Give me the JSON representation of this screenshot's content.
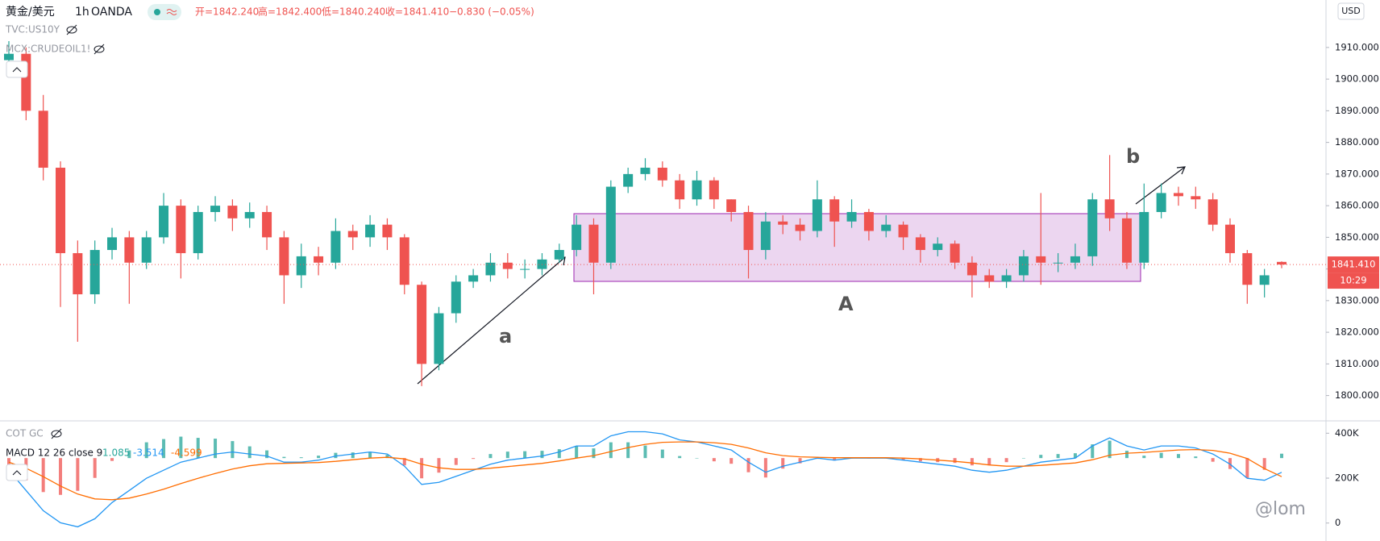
{
  "chart_data": [
    {
      "type": "candlestick",
      "title": "黄金/美元",
      "interval": "1h",
      "source": "OANDA",
      "ohlc_labels": [
        "开=1842.240",
        "高=1842.400",
        "低=1840.240",
        "收=1841.410"
      ],
      "change_label": "−0.830 (−0.05%)",
      "overlays": [
        "TVC:US10Y",
        "MCX:CRUDEOIL1!"
      ],
      "currency": "USD",
      "last_price_label": "1841.410",
      "countdown": "10:29",
      "annotations": [
        "a",
        "A",
        "b"
      ],
      "watermark": "@lom",
      "up_color": "#26a69a",
      "down_color": "#ef5350",
      "open": [
        1906,
        1908,
        1890,
        1872,
        1845,
        1832,
        1846,
        1850,
        1842,
        1850,
        1860,
        1845,
        1858,
        1860,
        1856,
        1858,
        1850,
        1838,
        1844,
        1842,
        1852,
        1850,
        1854,
        1850,
        1835,
        1810,
        1826,
        1836,
        1838,
        1842,
        1840,
        1840,
        1843,
        1846,
        1854,
        1842,
        1866,
        1870,
        1872,
        1868,
        1862,
        1868,
        1862,
        1858,
        1846,
        1855,
        1854,
        1852,
        1862,
        1855,
        1858,
        1852,
        1854,
        1850,
        1846,
        1848,
        1842,
        1838,
        1836,
        1838,
        1844,
        1842,
        1842,
        1844,
        1862,
        1856,
        1842,
        1858,
        1864,
        1863,
        1862,
        1854,
        1845,
        1835,
        1842.24
      ],
      "high": [
        1912,
        1910,
        1895,
        1874,
        1849,
        1849,
        1853,
        1852,
        1852,
        1864,
        1862,
        1860,
        1863,
        1862,
        1861,
        1860,
        1852,
        1848,
        1847,
        1856,
        1854,
        1857,
        1856,
        1851,
        1836,
        1828,
        1838,
        1840,
        1845,
        1845,
        1843,
        1845,
        1848,
        1857,
        1856,
        1868,
        1872,
        1875,
        1874,
        1870,
        1871,
        1869,
        1862,
        1860,
        1858,
        1857,
        1856,
        1868,
        1863,
        1862,
        1859,
        1857,
        1855,
        1851,
        1850,
        1849,
        1844,
        1840,
        1840,
        1846,
        1864,
        1845,
        1848,
        1864,
        1876,
        1858,
        1867,
        1867,
        1866,
        1866,
        1864,
        1856,
        1846,
        1840,
        1842.4
      ],
      "low": [
        1902,
        1887,
        1868,
        1828,
        1817,
        1829,
        1843,
        1829,
        1840,
        1848,
        1837,
        1843,
        1855,
        1852,
        1853,
        1846,
        1829,
        1834,
        1838,
        1840,
        1846,
        1847,
        1846,
        1832,
        1803,
        1808,
        1823,
        1834,
        1836,
        1837,
        1837,
        1838,
        1842,
        1844,
        1832,
        1840,
        1864,
        1868,
        1866,
        1859,
        1860,
        1859,
        1855,
        1837,
        1843,
        1851,
        1849,
        1850,
        1847,
        1853,
        1849,
        1850,
        1846,
        1842,
        1844,
        1840,
        1831,
        1834,
        1834,
        1836,
        1835,
        1839,
        1840,
        1841,
        1852,
        1840,
        1840,
        1856,
        1860,
        1859,
        1852,
        1842,
        1829,
        1831,
        1840.24
      ],
      "close": [
        1908,
        1890,
        1872,
        1845,
        1832,
        1846,
        1850,
        1842,
        1850,
        1860,
        1845,
        1858,
        1860,
        1856,
        1858,
        1850,
        1838,
        1844,
        1842,
        1852,
        1850,
        1854,
        1850,
        1835,
        1810,
        1826,
        1836,
        1838,
        1842,
        1840,
        1840,
        1843,
        1846,
        1854,
        1842,
        1866,
        1870,
        1872,
        1868,
        1862,
        1868,
        1862,
        1858,
        1846,
        1855,
        1854,
        1852,
        1862,
        1855,
        1858,
        1852,
        1854,
        1850,
        1846,
        1848,
        1842,
        1838,
        1836,
        1838,
        1844,
        1842,
        1842,
        1844,
        1862,
        1856,
        1842,
        1858,
        1864,
        1863,
        1862,
        1854,
        1845,
        1835,
        1838,
        1841.41
      ],
      "ylim": [
        1792,
        1925
      ],
      "yticks": [
        {
          "value": 1800,
          "label": "1800.000"
        },
        {
          "value": 1810,
          "label": "1810.000"
        },
        {
          "value": 1820,
          "label": "1820.000"
        },
        {
          "value": 1830,
          "label": "1830.000"
        },
        {
          "value": 1840,
          "label": "1840.000"
        },
        {
          "value": 1850,
          "label": "1850.000"
        },
        {
          "value": 1860,
          "label": "1860.000"
        },
        {
          "value": 1870,
          "label": "1870.000"
        },
        {
          "value": 1880,
          "label": "1880.000"
        },
        {
          "value": 1890,
          "label": "1890.000"
        },
        {
          "value": 1900,
          "label": "1900.000"
        },
        {
          "value": 1910,
          "label": "1910.000"
        }
      ],
      "grid": false
    },
    {
      "type": "macd",
      "indicators": [
        "COT GC",
        "MACD 12 26 close 9"
      ],
      "series": [
        {
          "style": "histogram",
          "color": "#26a69a",
          "negative_color": "#ef5350",
          "values": [
            -2,
            -5.5,
            -8.4,
            -9.1,
            -8.1,
            -4.9,
            -0.7,
            1.9,
            3.9,
            4.7,
            5.3,
            5,
            4.8,
            4.2,
            2.9,
            1.9,
            0.3,
            0.2,
            0.6,
            1.3,
            1.4,
            1.5,
            0.8,
            -1.8,
            -5,
            -3.6,
            -1.7,
            -0.2,
            1,
            1.6,
            1.7,
            1.8,
            2.2,
            3,
            2.4,
            3.9,
            3.9,
            3.1,
            2.1,
            0.5,
            0,
            -0.8,
            -1.4,
            -3.5,
            -4.8,
            -2.6,
            -1.3,
            -0.2,
            -0.6,
            -0.1,
            -0.1,
            -0.1,
            -0.5,
            -0.8,
            -1,
            -1.2,
            -1.8,
            -1.8,
            -1,
            0,
            0.8,
            1,
            1.2,
            3.4,
            4.3,
            1.8,
            0.6,
            1.3,
            1,
            0.4,
            -0.9,
            -2.7,
            -4.9,
            -2.9,
            1.085
          ]
        },
        {
          "style": "line",
          "color": "#2196f3",
          "values": [
            -3,
            -8,
            -13,
            -16,
            -17,
            -15,
            -11,
            -8,
            -5,
            -3,
            -1,
            0,
            1,
            1.5,
            1,
            0.5,
            -1,
            -1,
            -0.5,
            0.5,
            1,
            1.5,
            1,
            -2,
            -6.5,
            -6,
            -4.5,
            -3,
            -1.5,
            -0.5,
            0,
            0.5,
            1.5,
            3,
            3,
            5.5,
            6.5,
            6.5,
            6,
            4.5,
            4,
            3,
            2,
            -1,
            -3.5,
            -2,
            -1,
            0,
            -0.5,
            0,
            0,
            0,
            -0.5,
            -1,
            -1.5,
            -2,
            -3,
            -3.5,
            -3,
            -2,
            -1,
            -0.5,
            0,
            3,
            5,
            3,
            2,
            3,
            3,
            2.5,
            1,
            -1.5,
            -5,
            -5.5,
            -3.514
          ]
        },
        {
          "style": "line",
          "color": "#ff6d00",
          "values": [
            -1,
            -2.5,
            -4.6,
            -6.9,
            -8.9,
            -10.1,
            -10.3,
            -9.9,
            -8.9,
            -7.7,
            -6.3,
            -5,
            -3.8,
            -2.7,
            -1.9,
            -1.4,
            -1.3,
            -1.2,
            -1.1,
            -0.8,
            -0.4,
            0,
            0.2,
            -0.2,
            -1.5,
            -2.4,
            -2.8,
            -2.8,
            -2.5,
            -2.1,
            -1.7,
            -1.3,
            -0.7,
            0,
            0.6,
            1.6,
            2.6,
            3.4,
            3.9,
            4,
            4,
            3.8,
            3.4,
            2.5,
            1.3,
            0.6,
            0.3,
            0.2,
            0.1,
            0.1,
            0.1,
            0.1,
            0,
            -0.2,
            -0.5,
            -0.8,
            -1.2,
            -1.7,
            -2,
            -2,
            -1.8,
            -1.5,
            -1.2,
            -0.4,
            0.7,
            1.2,
            1.4,
            1.7,
            2,
            2.1,
            1.9,
            1.2,
            -0.1,
            -2.6,
            -4.599
          ]
        }
      ],
      "ylim": [
        -20.5,
        9.2
      ],
      "y2lim": [
        -80000,
        455000
      ],
      "y2ticks": [
        {
          "value": 400000,
          "label": "400K"
        },
        {
          "value": 200000,
          "label": "200K"
        },
        0
      ]
    }
  ]
}
